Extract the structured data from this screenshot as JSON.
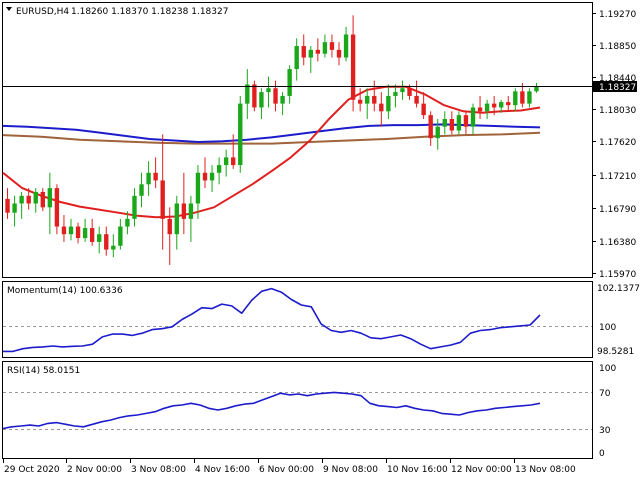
{
  "header": {
    "symbol_label": "EURUSD,H4",
    "ohlc": "1.18260 1.18370 1.18238 1.18327"
  },
  "price_axis": {
    "ticks": [
      "1.19270",
      "1.18850",
      "1.18440",
      "1.18030",
      "1.17620",
      "1.17210",
      "1.16790",
      "1.16380",
      "1.15970"
    ],
    "current_price": "1.18327"
  },
  "momentum": {
    "title": "Momentum(14) 100.6336",
    "ticks": [
      "102.1377",
      "100",
      "98.5281"
    ]
  },
  "rsi": {
    "title": "RSI(14) 58.0151",
    "ticks": [
      "100",
      "70",
      "30",
      "0"
    ]
  },
  "time_axis": {
    "labels": [
      "29 Oct 2020",
      "2 Nov 00:00",
      "3 Nov 08:00",
      "4 Nov 16:00",
      "6 Nov 00:00",
      "9 Nov 08:00",
      "10 Nov 16:00",
      "12 Nov 00:00",
      "13 Nov 08:00"
    ]
  },
  "colors": {
    "bull": "#1aa71a",
    "bear": "#e01f1f",
    "sma_red": "#e0201f",
    "sma_blue": "#1c1ccc",
    "sma_brown": "#a0633a",
    "indicator": "#1c1ccc"
  },
  "chart_data": {
    "type": "candlestick",
    "symbol": "EURUSD",
    "timeframe": "H4",
    "ylim": [
      1.1583,
      1.1941
    ],
    "x": [
      "29 Oct 2020",
      "2 Nov 00:00",
      "3 Nov 08:00",
      "4 Nov 16:00",
      "6 Nov 00:00",
      "9 Nov 08:00",
      "10 Nov 16:00",
      "12 Nov 00:00",
      "13 Nov 08:00"
    ],
    "candles": [
      [
        1.1686,
        1.17,
        1.166,
        1.1668
      ],
      [
        1.1668,
        1.169,
        1.165,
        1.168
      ],
      [
        1.168,
        1.1695,
        1.166,
        1.169
      ],
      [
        1.169,
        1.17,
        1.1672,
        1.168
      ],
      [
        1.168,
        1.17,
        1.1668,
        1.1695
      ],
      [
        1.1695,
        1.17,
        1.167,
        1.1675
      ],
      [
        1.1675,
        1.172,
        1.164,
        1.17
      ],
      [
        1.17,
        1.1705,
        1.164,
        1.165
      ],
      [
        1.165,
        1.1665,
        1.163,
        1.164
      ],
      [
        1.164,
        1.166,
        1.1632,
        1.165
      ],
      [
        1.165,
        1.1655,
        1.1628,
        1.1635
      ],
      [
        1.1635,
        1.166,
        1.163,
        1.1648
      ],
      [
        1.1648,
        1.166,
        1.1625,
        1.163
      ],
      [
        1.163,
        1.165,
        1.1615,
        1.164
      ],
      [
        1.164,
        1.165,
        1.1612,
        1.162
      ],
      [
        1.162,
        1.164,
        1.161,
        1.1625
      ],
      [
        1.1625,
        1.166,
        1.162,
        1.165
      ],
      [
        1.165,
        1.167,
        1.164,
        1.166
      ],
      [
        1.166,
        1.17,
        1.165,
        1.169
      ],
      [
        1.169,
        1.172,
        1.1675,
        1.1705
      ],
      [
        1.1705,
        1.1735,
        1.169,
        1.172
      ],
      [
        1.172,
        1.174,
        1.17,
        1.171
      ],
      [
        1.171,
        1.177,
        1.162,
        1.166
      ],
      [
        1.166,
        1.1675,
        1.16,
        1.164
      ],
      [
        1.164,
        1.169,
        1.162,
        1.168
      ],
      [
        1.168,
        1.172,
        1.164,
        1.166
      ],
      [
        1.166,
        1.169,
        1.163,
        1.168
      ],
      [
        1.168,
        1.173,
        1.166,
        1.172
      ],
      [
        1.172,
        1.174,
        1.17,
        1.171
      ],
      [
        1.171,
        1.173,
        1.1695,
        1.172
      ],
      [
        1.172,
        1.174,
        1.1705,
        1.173
      ],
      [
        1.173,
        1.175,
        1.1715,
        1.174
      ],
      [
        1.174,
        1.177,
        1.1725,
        1.173
      ],
      [
        1.173,
        1.182,
        1.172,
        1.181
      ],
      [
        1.181,
        1.1855,
        1.179,
        1.1835
      ],
      [
        1.1835,
        1.184,
        1.18,
        1.1805
      ],
      [
        1.1805,
        1.183,
        1.179,
        1.1825
      ],
      [
        1.1825,
        1.1845,
        1.1805,
        1.183
      ],
      [
        1.183,
        1.184,
        1.18,
        1.181
      ],
      [
        1.181,
        1.1825,
        1.1795,
        1.182
      ],
      [
        1.182,
        1.186,
        1.181,
        1.1855
      ],
      [
        1.1855,
        1.1895,
        1.184,
        1.1885
      ],
      [
        1.1885,
        1.19,
        1.186,
        1.187
      ],
      [
        1.187,
        1.1885,
        1.185,
        1.188
      ],
      [
        1.188,
        1.1895,
        1.1865,
        1.1875
      ],
      [
        1.1875,
        1.19,
        1.187,
        1.189
      ],
      [
        1.189,
        1.19,
        1.187,
        1.188
      ],
      [
        1.188,
        1.189,
        1.186,
        1.187
      ],
      [
        1.187,
        1.191,
        1.1865,
        1.19
      ],
      [
        1.19,
        1.1925,
        1.18,
        1.1815
      ],
      [
        1.1815,
        1.183,
        1.18,
        1.181
      ],
      [
        1.181,
        1.183,
        1.179,
        1.182
      ],
      [
        1.182,
        1.184,
        1.18,
        1.181
      ],
      [
        1.181,
        1.1825,
        1.178,
        1.18
      ],
      [
        1.18,
        1.1835,
        1.179,
        1.182
      ],
      [
        1.182,
        1.1835,
        1.1805,
        1.1825
      ],
      [
        1.1825,
        1.184,
        1.1815,
        1.183
      ],
      [
        1.183,
        1.1835,
        1.1815,
        1.182
      ],
      [
        1.182,
        1.184,
        1.1805,
        1.181
      ],
      [
        1.181,
        1.1825,
        1.179,
        1.1795
      ],
      [
        1.1795,
        1.18,
        1.1755,
        1.1765
      ],
      [
        1.1765,
        1.179,
        1.175,
        1.178
      ],
      [
        1.178,
        1.18,
        1.177,
        1.179
      ],
      [
        1.179,
        1.18,
        1.177,
        1.1775
      ],
      [
        1.1775,
        1.18,
        1.177,
        1.1795
      ],
      [
        1.1795,
        1.18,
        1.177,
        1.178
      ],
      [
        1.178,
        1.181,
        1.177,
        1.1805
      ],
      [
        1.1805,
        1.182,
        1.179,
        1.18
      ],
      [
        1.18,
        1.1815,
        1.179,
        1.181
      ],
      [
        1.181,
        1.182,
        1.1795,
        1.1805
      ],
      [
        1.1805,
        1.1815,
        1.1798,
        1.1812
      ],
      [
        1.1812,
        1.182,
        1.18,
        1.1808
      ],
      [
        1.1808,
        1.183,
        1.18,
        1.1826
      ],
      [
        1.1826,
        1.1837,
        1.1805,
        1.181
      ],
      [
        1.181,
        1.183,
        1.1805,
        1.1826
      ],
      [
        1.1826,
        1.1837,
        1.1824,
        1.1833
      ]
    ],
    "sma_red": [
      1.172,
      1.17,
      1.169,
      1.1682,
      1.1676,
      1.1672,
      1.1668,
      1.1664,
      1.1662,
      1.1663,
      1.1668,
      1.1675,
      1.169,
      1.1705,
      1.1722,
      1.174,
      1.1762,
      1.179,
      1.1815,
      1.1828,
      1.1832,
      1.1832,
      1.1822,
      1.1808,
      1.18,
      1.1798,
      1.18,
      1.1801,
      1.1805
    ],
    "sma_blue": [
      1.1781,
      1.178,
      1.1778,
      1.1776,
      1.1772,
      1.1768,
      1.1764,
      1.1762,
      1.176,
      1.1761,
      1.1763,
      1.1766,
      1.177,
      1.1774,
      1.1778,
      1.1781,
      1.1782,
      1.1782,
      1.1783,
      1.1782,
      1.1781,
      1.178,
      1.1779
    ],
    "sma_brown": [
      1.1769,
      1.1767,
      1.1763,
      1.1761,
      1.1759,
      1.1758,
      1.1758,
      1.1758,
      1.176,
      1.1762,
      1.1764,
      1.1767,
      1.1769,
      1.177,
      1.1772
    ],
    "momentum": {
      "ylim": [
        98.35,
        102.3
      ],
      "values": [
        98.6,
        98.6,
        98.75,
        98.82,
        98.85,
        98.9,
        98.85,
        98.88,
        98.9,
        99.0,
        99.4,
        99.55,
        99.55,
        99.48,
        99.6,
        99.8,
        99.85,
        99.95,
        100.35,
        100.65,
        101.0,
        100.95,
        101.2,
        101.1,
        100.7,
        101.4,
        101.9,
        102.05,
        101.85,
        101.45,
        101.15,
        101.05,
        100.1,
        99.75,
        99.65,
        99.75,
        99.6,
        99.35,
        99.3,
        99.4,
        99.5,
        99.3,
        99.0,
        98.75,
        98.85,
        98.95,
        99.1,
        99.6,
        99.75,
        99.8,
        99.9,
        99.95,
        100.0,
        100.05,
        100.6
      ]
    },
    "rsi": {
      "ylim": [
        0,
        100
      ],
      "levels": [
        70,
        30
      ],
      "values": [
        28,
        30,
        31,
        32,
        31,
        34,
        35,
        33,
        31,
        30,
        33,
        36,
        38,
        41,
        43,
        44,
        46,
        48,
        52,
        55,
        56,
        58,
        56,
        52,
        50,
        52,
        55,
        57,
        58,
        62,
        66,
        70,
        68,
        69,
        67,
        69,
        70,
        71,
        70,
        69,
        67,
        58,
        55,
        54,
        53,
        55,
        52,
        50,
        49,
        46,
        45,
        44,
        47,
        49,
        50,
        52,
        53,
        54,
        55,
        56,
        58
      ]
    }
  }
}
